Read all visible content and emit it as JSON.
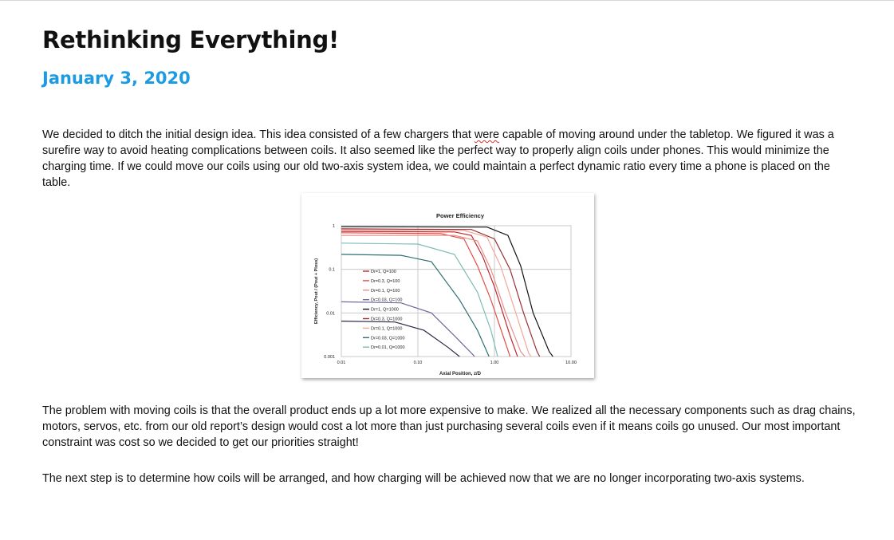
{
  "doc": {
    "title": "Rethinking Everything!",
    "date": "January 3, 2020",
    "p1_pre": "We decided to ditch the initial design idea.  This idea consisted of a few chargers that ",
    "p1_misspelled": "were",
    "p1_post": " capable of moving around under the tabletop.  We figured it was a surefire way to avoid heating complications between coils.  It also seemed like the perfect way to properly align coils under phones.  This would minimize the charging time.  If we could move our coils using our old two-axis system idea, we could maintain a perfect dynamic ratio every time a phone is placed on the table.",
    "p2": "The problem with moving coils is that the overall product ends up a lot more expensive to make.  We realized all the necessary components such as drag chains, motors, servos, etc. from our old report’s design would cost a lot more than just purchasing several coils even if it means coils go unused.  Our most important constraint was cost so we decided to get our priorities straight!",
    "p3": "The next step is to determine how coils will be arranged, and how charging will be achieved now that we are no longer incorporating two-axis systems."
  },
  "chart_data": {
    "type": "line",
    "title": "Power Efficiency",
    "xlabel": "Axial Position, z/D",
    "ylabel": "Efficiency, Pout / (Pout + Ploss)",
    "x_scale": "log",
    "y_scale": "log",
    "xlim": [
      0.01,
      10
    ],
    "ylim": [
      0.001,
      1
    ],
    "x_ticks": [
      "0.01",
      "0.10",
      "1.00",
      "10.00"
    ],
    "y_ticks": [
      "1",
      "0.1",
      "0.01",
      "0.001"
    ],
    "grid": true,
    "legend_position": "center-left",
    "series": [
      {
        "name": "Dr=1, Q=100",
        "color": "#c2272d",
        "points": [
          [
            0.01,
            0.74
          ],
          [
            0.3,
            0.72
          ],
          [
            0.5,
            0.6
          ],
          [
            0.7,
            0.2
          ],
          [
            1.0,
            0.04
          ],
          [
            1.6,
            0.003
          ],
          [
            2.0,
            0.001
          ]
        ]
      },
      {
        "name": "Dr=0.3, Q=100",
        "color": "#e0504a",
        "points": [
          [
            0.01,
            0.69
          ],
          [
            0.2,
            0.66
          ],
          [
            0.4,
            0.5
          ],
          [
            0.6,
            0.12
          ],
          [
            0.9,
            0.02
          ],
          [
            1.4,
            0.002
          ],
          [
            1.6,
            0.001
          ]
        ]
      },
      {
        "name": "Dr=0.1, Q=100",
        "color": "#e8908c",
        "points": [
          [
            0.01,
            0.6
          ],
          [
            0.3,
            0.6
          ],
          [
            0.6,
            0.45
          ],
          [
            0.9,
            0.1
          ],
          [
            1.4,
            0.01
          ],
          [
            2.2,
            0.0013
          ],
          [
            2.5,
            0.001
          ]
        ]
      },
      {
        "name": "Dr=0.03, Q=100",
        "color": "#6d6a9c",
        "points": [
          [
            0.01,
            0.018
          ],
          [
            0.06,
            0.017
          ],
          [
            0.15,
            0.01
          ],
          [
            0.3,
            0.003
          ],
          [
            0.5,
            0.0012
          ],
          [
            0.55,
            0.001
          ]
        ]
      },
      {
        "name": "Dr=1, Q=1000",
        "color": "#111111",
        "points": [
          [
            0.01,
            0.95
          ],
          [
            0.8,
            0.93
          ],
          [
            1.5,
            0.6
          ],
          [
            2.2,
            0.12
          ],
          [
            3.2,
            0.01
          ],
          [
            5.2,
            0.0013
          ],
          [
            5.8,
            0.001
          ]
        ]
      },
      {
        "name": "Dr=0.3, Q=1000",
        "color": "#9b2f35",
        "points": [
          [
            0.01,
            0.85
          ],
          [
            0.5,
            0.82
          ],
          [
            1.0,
            0.5
          ],
          [
            1.6,
            0.1
          ],
          [
            2.4,
            0.01
          ],
          [
            3.6,
            0.0013
          ],
          [
            3.9,
            0.001
          ]
        ]
      },
      {
        "name": "Dr=0.1, Q=1000",
        "color": "#f1a89a",
        "points": [
          [
            0.01,
            0.8
          ],
          [
            0.4,
            0.78
          ],
          [
            0.8,
            0.55
          ],
          [
            1.2,
            0.12
          ],
          [
            1.9,
            0.01
          ],
          [
            2.8,
            0.0012
          ],
          [
            3.0,
            0.001
          ]
        ]
      },
      {
        "name": "Dr=0.03, Q=1000",
        "color": "#2e6f72",
        "points": [
          [
            0.01,
            0.22
          ],
          [
            0.06,
            0.21
          ],
          [
            0.15,
            0.15
          ],
          [
            0.35,
            0.02
          ],
          [
            0.6,
            0.004
          ],
          [
            0.85,
            0.001
          ]
        ]
      },
      {
        "name": "Dr=0.01, Q=1000",
        "color": "#7ebdb7",
        "points": [
          [
            0.01,
            0.4
          ],
          [
            0.1,
            0.38
          ],
          [
            0.3,
            0.22
          ],
          [
            0.6,
            0.03
          ],
          [
            0.9,
            0.004
          ],
          [
            1.1,
            0.001
          ]
        ]
      },
      {
        "name": "",
        "color": "#2b2a4a",
        "points": [
          [
            0.01,
            0.0065
          ],
          [
            0.05,
            0.0062
          ],
          [
            0.12,
            0.004
          ],
          [
            0.25,
            0.0016
          ],
          [
            0.35,
            0.001
          ]
        ]
      }
    ]
  }
}
